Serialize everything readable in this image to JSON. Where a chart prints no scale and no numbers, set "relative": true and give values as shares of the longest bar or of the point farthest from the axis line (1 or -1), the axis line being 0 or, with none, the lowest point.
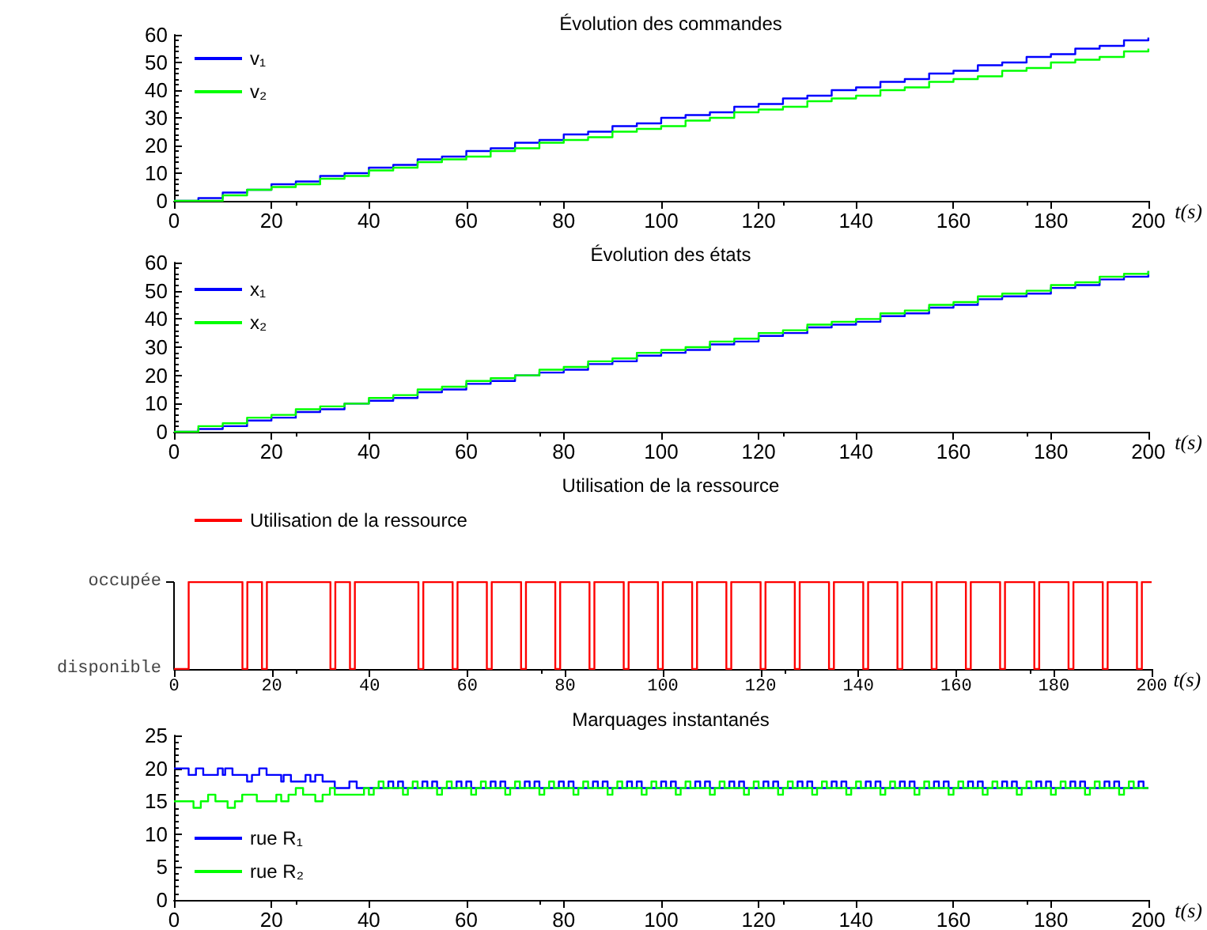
{
  "chart_data": [
    {
      "type": "step",
      "title": "Évolution des commandes",
      "xlabel": "t(s)",
      "legend": "top left",
      "marker": "none",
      "xlim": [
        0,
        200
      ],
      "xticks": [
        0,
        20,
        40,
        60,
        80,
        100,
        120,
        140,
        160,
        180,
        200
      ],
      "ylim": [
        0,
        60
      ],
      "yticks": [
        0,
        10,
        20,
        30,
        40,
        50,
        60
      ],
      "x": [
        0,
        5,
        10,
        15,
        20,
        25,
        30,
        35,
        40,
        45,
        50,
        55,
        60,
        65,
        70,
        75,
        80,
        85,
        90,
        95,
        100,
        105,
        110,
        115,
        120,
        125,
        130,
        135,
        140,
        145,
        150,
        155,
        160,
        165,
        170,
        175,
        180,
        185,
        190,
        195,
        200
      ],
      "series": [
        {
          "name": "v₁",
          "color": "#0000ff",
          "values": [
            0,
            1,
            3,
            4,
            6,
            7,
            9,
            10,
            12,
            13,
            15,
            16,
            18,
            19,
            21,
            22,
            24,
            25,
            27,
            28,
            30,
            31,
            32,
            34,
            35,
            37,
            38,
            40,
            41,
            43,
            44,
            46,
            47,
            49,
            50,
            52,
            53,
            55,
            56,
            58,
            59
          ]
        },
        {
          "name": "v₂",
          "color": "#00ff00",
          "values": [
            0,
            0,
            2,
            4,
            5,
            6,
            8,
            9,
            11,
            12,
            14,
            15,
            16,
            18,
            19,
            21,
            22,
            23,
            25,
            26,
            27,
            29,
            30,
            32,
            33,
            34,
            36,
            37,
            38,
            40,
            41,
            43,
            44,
            45,
            47,
            48,
            50,
            51,
            52,
            54,
            55
          ]
        }
      ]
    },
    {
      "type": "step",
      "title": "Évolution des états",
      "xlabel": "t(s)",
      "legend": "top left",
      "marker": "none",
      "xlim": [
        0,
        200
      ],
      "xticks": [
        0,
        20,
        40,
        60,
        80,
        100,
        120,
        140,
        160,
        180,
        200
      ],
      "ylim": [
        0,
        60
      ],
      "yticks": [
        0,
        10,
        20,
        30,
        40,
        50,
        60
      ],
      "x": [
        0,
        5,
        10,
        15,
        20,
        25,
        30,
        35,
        40,
        45,
        50,
        55,
        60,
        65,
        70,
        75,
        80,
        85,
        90,
        95,
        100,
        105,
        110,
        115,
        120,
        125,
        130,
        135,
        140,
        145,
        150,
        155,
        160,
        165,
        170,
        175,
        180,
        185,
        190,
        195,
        200
      ],
      "series": [
        {
          "name": "x₁",
          "color": "#0000ff",
          "values": [
            0,
            1,
            2,
            4,
            5,
            7,
            8,
            10,
            11,
            12,
            14,
            15,
            17,
            18,
            20,
            21,
            22,
            24,
            25,
            27,
            28,
            29,
            31,
            32,
            34,
            35,
            37,
            38,
            39,
            41,
            42,
            44,
            45,
            47,
            48,
            49,
            51,
            52,
            54,
            55,
            57
          ]
        },
        {
          "name": "x₂",
          "color": "#00ff00",
          "values": [
            0,
            2,
            3,
            5,
            6,
            8,
            9,
            10,
            12,
            13,
            15,
            16,
            18,
            19,
            20,
            22,
            23,
            25,
            26,
            28,
            29,
            30,
            32,
            33,
            35,
            36,
            38,
            39,
            40,
            42,
            43,
            45,
            46,
            48,
            49,
            50,
            52,
            53,
            55,
            56,
            57
          ]
        }
      ]
    },
    {
      "type": "step",
      "title": "Utilisation de la ressource",
      "xlabel": "t(s)",
      "legend": "top left",
      "marker": "none",
      "xlim": [
        0,
        200
      ],
      "xticks": [
        0,
        20,
        40,
        60,
        80,
        100,
        120,
        140,
        160,
        180,
        200
      ],
      "relative": true,
      "annotations": [
        "occupée",
        "disponible"
      ],
      "x": [
        0,
        3,
        14,
        15,
        18,
        19,
        32,
        33,
        36,
        37,
        50,
        51,
        57,
        58,
        64,
        65,
        71,
        72,
        78,
        79,
        85,
        86,
        92,
        93,
        99,
        100,
        106,
        107,
        113,
        114,
        120,
        121,
        127,
        128,
        134,
        135,
        141,
        142,
        148,
        149,
        155,
        156,
        162,
        163,
        169,
        170,
        176,
        177,
        183,
        184,
        190,
        191,
        197,
        198,
        200
      ],
      "series": [
        {
          "name": "Utilisation de la ressource",
          "color": "#ff0000",
          "values": [
            0,
            1,
            0,
            1,
            0,
            1,
            0,
            1,
            0,
            1,
            0,
            1,
            0,
            1,
            0,
            1,
            0,
            1,
            0,
            1,
            0,
            1,
            0,
            1,
            0,
            1,
            0,
            1,
            0,
            1,
            0,
            1,
            0,
            1,
            0,
            1,
            0,
            1,
            0,
            1,
            0,
            1,
            0,
            1,
            0,
            1,
            0,
            1,
            0,
            1,
            0,
            1,
            0,
            1,
            1
          ]
        }
      ]
    },
    {
      "type": "step",
      "title": "Marquages instantanés",
      "xlabel": "t(s)",
      "legend": "bottom left",
      "marker": "none",
      "xlim": [
        0,
        200
      ],
      "xticks": [
        0,
        20,
        40,
        60,
        80,
        100,
        120,
        140,
        160,
        180,
        200
      ],
      "ylim": [
        0,
        25
      ],
      "yticks": [
        0,
        5,
        10,
        15,
        20,
        25
      ],
      "series": [
        {
          "name": "rue R₁",
          "color": "#0000ff",
          "x": [
            0,
            3,
            4.5,
            6,
            9,
            10,
            10.5,
            12,
            15,
            16,
            17.5,
            19,
            22,
            22.5,
            24,
            27,
            28,
            29,
            30.5,
            33,
            36,
            37.5,
            44,
            45,
            46,
            47,
            51,
            52,
            53,
            54,
            58,
            59,
            60,
            61,
            65,
            66,
            67,
            68,
            72,
            73,
            74,
            75,
            79,
            80,
            81,
            82,
            86,
            87,
            88,
            89,
            93,
            94,
            95,
            96,
            100,
            101,
            102,
            103,
            107,
            108,
            109,
            110,
            114,
            115,
            116,
            117,
            121,
            122,
            123,
            124,
            128,
            129,
            130,
            131,
            135,
            136,
            137,
            138,
            142,
            143,
            144,
            145,
            149,
            150,
            151,
            152,
            156,
            157,
            158,
            159,
            163,
            164,
            165,
            166,
            170,
            171,
            172,
            173,
            177,
            178,
            179,
            180,
            184,
            185,
            186,
            187,
            191,
            192,
            193,
            194,
            198,
            199,
            200
          ],
          "values": [
            20,
            19,
            20,
            19,
            20,
            19,
            20,
            19,
            18,
            19,
            20,
            19,
            18,
            19,
            18,
            19,
            18,
            19,
            18,
            17,
            18,
            17,
            18,
            17,
            18,
            17,
            18,
            17,
            18,
            17,
            18,
            17,
            18,
            17,
            18,
            17,
            18,
            17,
            18,
            17,
            18,
            17,
            18,
            17,
            18,
            17,
            18,
            17,
            18,
            17,
            18,
            17,
            18,
            17,
            18,
            17,
            18,
            17,
            18,
            17,
            18,
            17,
            18,
            17,
            18,
            17,
            18,
            17,
            18,
            17,
            18,
            17,
            18,
            17,
            18,
            17,
            18,
            17,
            18,
            17,
            18,
            17,
            18,
            17,
            18,
            17,
            18,
            17,
            18,
            17,
            18,
            17,
            18,
            17,
            18,
            17,
            18,
            17,
            18,
            17,
            18,
            17,
            18,
            17,
            18,
            17,
            18,
            17,
            18,
            17,
            18,
            17,
            17
          ]
        },
        {
          "name": "rue R₂",
          "color": "#00ff00",
          "x": [
            0,
            4,
            5.5,
            7,
            8.5,
            11,
            12.5,
            14,
            17,
            21,
            22,
            23.5,
            25,
            26.5,
            29,
            30.5,
            32,
            33,
            39,
            40,
            41,
            42,
            43,
            47,
            48,
            49,
            50,
            54,
            55,
            56,
            57,
            61,
            62,
            63,
            64,
            68,
            69,
            70,
            71,
            75,
            76,
            77,
            78,
            82,
            83,
            84,
            85,
            89,
            90,
            91,
            92,
            96,
            97,
            98,
            99,
            103,
            104,
            105,
            106,
            110,
            111,
            112,
            113,
            117,
            118,
            119,
            120,
            124,
            125,
            126,
            127,
            131,
            132,
            133,
            134,
            138,
            139,
            140,
            141,
            145,
            146,
            147,
            148,
            152,
            153,
            154,
            155,
            159,
            160,
            161,
            162,
            166,
            167,
            168,
            169,
            173,
            174,
            175,
            176,
            180,
            181,
            182,
            183,
            187,
            188,
            189,
            190,
            194,
            195,
            196,
            197,
            200
          ],
          "values": [
            15,
            14,
            15,
            16,
            15,
            14,
            15,
            16,
            15,
            16,
            15,
            16,
            17,
            16,
            15,
            16,
            17,
            16,
            17,
            16,
            17,
            18,
            17,
            16,
            17,
            18,
            17,
            16,
            17,
            18,
            17,
            16,
            17,
            18,
            17,
            16,
            17,
            18,
            17,
            16,
            17,
            18,
            17,
            16,
            17,
            18,
            17,
            16,
            17,
            18,
            17,
            16,
            17,
            18,
            17,
            16,
            17,
            18,
            17,
            16,
            17,
            18,
            17,
            16,
            17,
            18,
            17,
            16,
            17,
            18,
            17,
            16,
            17,
            18,
            17,
            16,
            17,
            18,
            17,
            16,
            17,
            18,
            17,
            16,
            17,
            18,
            17,
            16,
            17,
            18,
            17,
            16,
            17,
            18,
            17,
            16,
            17,
            18,
            17,
            16,
            17,
            18,
            17,
            16,
            17,
            18,
            17,
            16,
            17,
            18,
            17,
            17
          ]
        }
      ]
    }
  ]
}
